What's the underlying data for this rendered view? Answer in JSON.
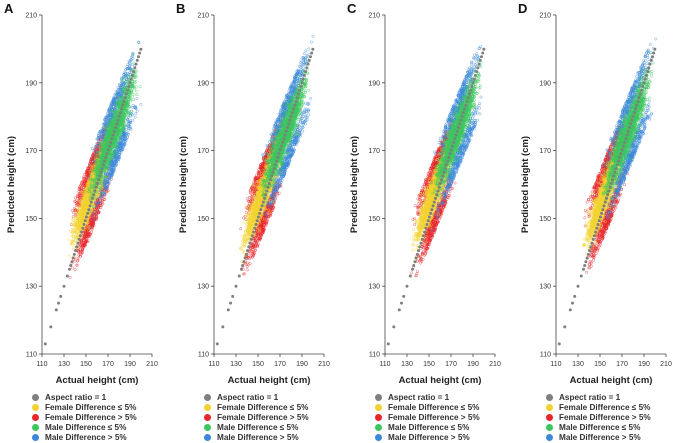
{
  "colors": {
    "aspect": "#7f7f7f",
    "female_le": "#f2d230",
    "female_gt": "#e8262a",
    "male_le": "#3cc65e",
    "male_gt": "#3b87d9",
    "axis": "#444444"
  },
  "chart_data": [
    {
      "panel": "A",
      "type": "scatter",
      "xlabel": "Actual height (cm)",
      "ylabel": "Predicted height (cm)",
      "xlim": [
        110,
        210
      ],
      "ylim": [
        110,
        210
      ],
      "xticks": [
        110,
        130,
        150,
        170,
        190,
        210
      ],
      "yticks": [
        110,
        130,
        150,
        170,
        190,
        210
      ],
      "grid": false,
      "series": [
        {
          "name": "Aspect ratio = 1",
          "key": "aspect",
          "x_range": [
            113,
            200
          ],
          "identity": true
        },
        {
          "name": "Female Difference ≤ 5%",
          "key": "female_le",
          "x_range": [
            133,
            175
          ],
          "y_spread": 6
        },
        {
          "name": "Female Difference > 5%",
          "key": "female_gt",
          "x_range": [
            133,
            178
          ],
          "y_spread": 11
        },
        {
          "name": "Male Difference ≤ 5%",
          "key": "male_le",
          "x_range": [
            150,
            200
          ],
          "y_spread": 6
        },
        {
          "name": "Male Difference > 5%",
          "key": "male_gt",
          "x_range": [
            150,
            202
          ],
          "y_spread": 11
        }
      ],
      "legend": [
        "Aspect ratio = 1",
        "Female Difference ≤ 5%",
        "Female Difference > 5%",
        "Male Difference ≤ 5%",
        "Male Difference > 5%"
      ]
    },
    {
      "panel": "B",
      "type": "scatter",
      "xlabel": "Actual height (cm)",
      "ylabel": "Predicted height (cm)",
      "xlim": [
        110,
        210
      ],
      "ylim": [
        110,
        210
      ],
      "xticks": [
        110,
        130,
        150,
        170,
        190,
        210
      ],
      "yticks": [
        110,
        130,
        150,
        170,
        190,
        210
      ],
      "grid": false,
      "series": [
        {
          "name": "Aspect ratio = 1",
          "key": "aspect",
          "x_range": [
            113,
            200
          ],
          "identity": true
        },
        {
          "name": "Female Difference ≤ 5%",
          "key": "female_le",
          "x_range": [
            133,
            175
          ],
          "y_spread": 6
        },
        {
          "name": "Female Difference > 5%",
          "key": "female_gt",
          "x_range": [
            133,
            178
          ],
          "y_spread": 11
        },
        {
          "name": "Male Difference ≤ 5%",
          "key": "male_le",
          "x_range": [
            150,
            200
          ],
          "y_spread": 6
        },
        {
          "name": "Male Difference > 5%",
          "key": "male_gt",
          "x_range": [
            150,
            202
          ],
          "y_spread": 11
        }
      ],
      "legend": [
        "Aspect ratio = 1",
        "Female Difference ≤ 5%",
        "Female Difference > 5%",
        "Male Difference ≤ 5%",
        "Male Difference > 5%"
      ]
    },
    {
      "panel": "C",
      "type": "scatter",
      "xlabel": "Actual height (cm)",
      "ylabel": "Predicted height (cm)",
      "xlim": [
        110,
        210
      ],
      "ylim": [
        110,
        210
      ],
      "xticks": [
        110,
        130,
        150,
        170,
        190,
        210
      ],
      "yticks": [
        110,
        130,
        150,
        170,
        190,
        210
      ],
      "grid": false,
      "series": [
        {
          "name": "Aspect ratio = 1",
          "key": "aspect",
          "x_range": [
            113,
            200
          ],
          "identity": true
        },
        {
          "name": "Female Difference ≤ 5%",
          "key": "female_le",
          "x_range": [
            133,
            175
          ],
          "y_spread": 6
        },
        {
          "name": "Female Difference > 5%",
          "key": "female_gt",
          "x_range": [
            133,
            178
          ],
          "y_spread": 11
        },
        {
          "name": "Male Difference ≤ 5%",
          "key": "male_le",
          "x_range": [
            150,
            200
          ],
          "y_spread": 6
        },
        {
          "name": "Male Difference > 5%",
          "key": "male_gt",
          "x_range": [
            150,
            202
          ],
          "y_spread": 11
        }
      ],
      "legend": [
        "Aspect ratio = 1",
        "Female Difference ≤ 5%",
        "Female Difference > 5%",
        "Male Difference ≤ 5%",
        "Male Difference > 5%"
      ]
    },
    {
      "panel": "D",
      "type": "scatter",
      "xlabel": "Actual height (cm)",
      "ylabel": "Predicted height (cm)",
      "xlim": [
        110,
        210
      ],
      "ylim": [
        110,
        210
      ],
      "xticks": [
        110,
        130,
        150,
        170,
        190,
        210
      ],
      "yticks": [
        110,
        130,
        150,
        170,
        190,
        210
      ],
      "grid": false,
      "series": [
        {
          "name": "Aspect ratio = 1",
          "key": "aspect",
          "x_range": [
            113,
            200
          ],
          "identity": true
        },
        {
          "name": "Female Difference ≤ 5%",
          "key": "female_le",
          "x_range": [
            133,
            175
          ],
          "y_spread": 6
        },
        {
          "name": "Female Difference > 5%",
          "key": "female_gt",
          "x_range": [
            133,
            178
          ],
          "y_spread": 11
        },
        {
          "name": "Male Difference ≤ 5%",
          "key": "male_le",
          "x_range": [
            150,
            200
          ],
          "y_spread": 6
        },
        {
          "name": "Male Difference > 5%",
          "key": "male_gt",
          "x_range": [
            150,
            202
          ],
          "y_spread": 11
        }
      ],
      "legend": [
        "Aspect ratio = 1",
        "Female Difference ≤ 5%",
        "Female Difference > 5%",
        "Male Difference ≤ 5%",
        "Male Difference > 5%"
      ]
    }
  ]
}
